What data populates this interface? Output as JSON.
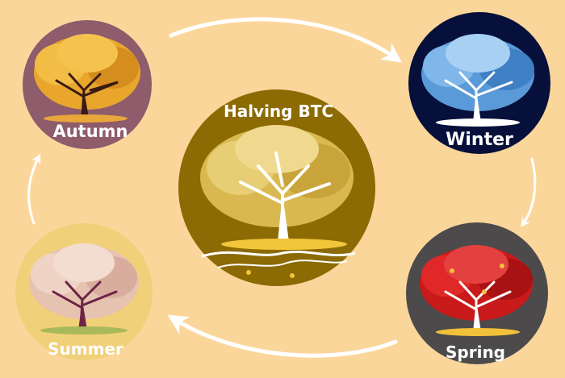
{
  "center": {
    "title": "Halving BTC"
  },
  "seasons": [
    {
      "key": "autumn",
      "label": "Autumn"
    },
    {
      "key": "winter",
      "label": "Winter"
    },
    {
      "key": "spring",
      "label": "Spring"
    },
    {
      "key": "summer",
      "label": "Summer"
    }
  ],
  "colors": {
    "background": "#fbd69b",
    "autumn_disc": "#8e5c6a",
    "winter_disc": "#06103a",
    "spring_disc": "#4c4a4a",
    "summer_disc": "#f1d07a",
    "center_disc": "#8c6a04",
    "arrow": "#ffffff"
  },
  "icons": {
    "tree": "tree-illustration",
    "arrow": "curved-arrow"
  }
}
